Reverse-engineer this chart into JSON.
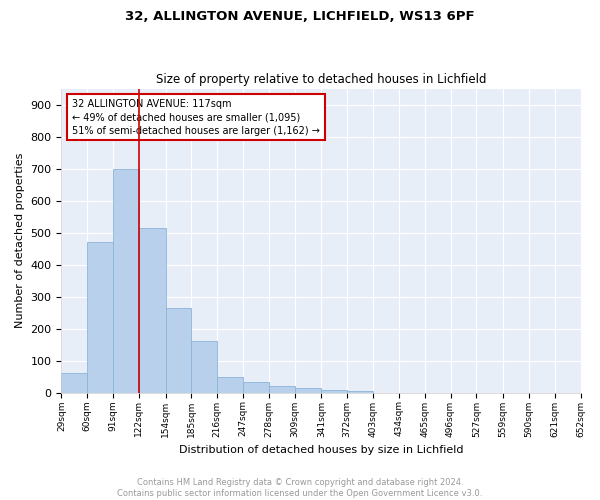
{
  "title1": "32, ALLINGTON AVENUE, LICHFIELD, WS13 6PF",
  "title2": "Size of property relative to detached houses in Lichfield",
  "xlabel": "Distribution of detached houses by size in Lichfield",
  "ylabel": "Number of detached properties",
  "annotation_line1": "32 ALLINGTON AVENUE: 117sqm",
  "annotation_line2": "← 49% of detached houses are smaller (1,095)",
  "annotation_line3": "51% of semi-detached houses are larger (1,162) →",
  "bin_edges": [
    29,
    60,
    91,
    122,
    154,
    185,
    216,
    247,
    278,
    309,
    341,
    372,
    403,
    434,
    465,
    496,
    527,
    559,
    590,
    621,
    652
  ],
  "bin_labels": [
    "29sqm",
    "60sqm",
    "91sqm",
    "122sqm",
    "154sqm",
    "185sqm",
    "216sqm",
    "247sqm",
    "278sqm",
    "309sqm",
    "341sqm",
    "372sqm",
    "403sqm",
    "434sqm",
    "465sqm",
    "496sqm",
    "527sqm",
    "559sqm",
    "590sqm",
    "621sqm",
    "652sqm"
  ],
  "counts": [
    60,
    470,
    700,
    515,
    265,
    160,
    48,
    33,
    20,
    15,
    8,
    5,
    0,
    0,
    0,
    0,
    0,
    0,
    0,
    0
  ],
  "bar_color": "#b8d0eb",
  "bar_edge_color": "#8ab4d8",
  "vline_color": "#cc0000",
  "vline_x": 122,
  "annotation_box_color": "#cc0000",
  "bg_color": "#e8eef8",
  "grid_color": "#ffffff",
  "ylim": [
    0,
    950
  ],
  "yticks": [
    0,
    100,
    200,
    300,
    400,
    500,
    600,
    700,
    800,
    900
  ],
  "footer_text": "Contains HM Land Registry data © Crown copyright and database right 2024.\nContains public sector information licensed under the Open Government Licence v3.0.",
  "footer_color": "#999999",
  "title1_fontsize": 9.5,
  "title2_fontsize": 8.5,
  "ylabel_fontsize": 8,
  "xlabel_fontsize": 8
}
